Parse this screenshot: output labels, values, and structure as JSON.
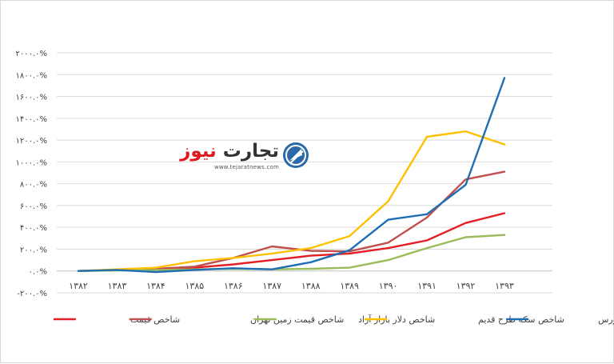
{
  "logo": {
    "name_part1": "تجارت",
    "name_part2": "نیوز",
    "url": "www.tejaratnews.com",
    "colors": {
      "dark": "#333333",
      "accent": "#e0191f",
      "mark": "#2b6aa8"
    }
  },
  "chart_data": {
    "type": "line",
    "categories": [
      "۱۳۸۲",
      "۱۳۸۳",
      "۱۳۸۴",
      "۱۳۸۵",
      "۱۳۸۶",
      "۱۳۸۷",
      "۱۳۸۸",
      "۱۳۸۹",
      "۱۳۹۰",
      "۱۳۹۱",
      "۱۳۹۲",
      "۱۳۹۳"
    ],
    "yticks": [
      -200,
      0,
      200,
      400,
      600,
      800,
      1000,
      1200,
      1400,
      1600,
      1800,
      2000
    ],
    "ytick_labels": [
      "-۲۰۰.۰%",
      "۰.۰%",
      "۲۰۰.۰%",
      "۴۰۰.۰%",
      "۶۰۰.۰%",
      "۸۰۰.۰%",
      "۱۰۰۰.۰%",
      "۱۲۰۰.۰%",
      "۱۴۰۰.۰%",
      "۱۶۰۰.۰%",
      "۱۸۰۰.۰%",
      "۲۰۰۰.۰%"
    ],
    "ylim": [
      -200,
      2000
    ],
    "grid": true,
    "legend_position": "bottom",
    "series": [
      {
        "name": "شاخص قیمت",
        "color": "#e31e24",
        "values": [
          0,
          10,
          20,
          30,
          60,
          100,
          140,
          160,
          210,
          280,
          440,
          530
        ]
      },
      {
        "name": "شاخص قیمت زمین تهران",
        "color": "#c0504d",
        "values": [
          0,
          10,
          20,
          40,
          120,
          225,
          185,
          180,
          260,
          490,
          840,
          910
        ]
      },
      {
        "name": "شاخص دلار بازار آزاد",
        "color": "#9bbb59",
        "values": [
          0,
          5,
          10,
          15,
          20,
          15,
          20,
          30,
          100,
          210,
          310,
          330
        ]
      },
      {
        "name": "شاخص سکه طرح قدیم",
        "color": "#ffc000",
        "values": [
          0,
          15,
          30,
          90,
          120,
          160,
          210,
          320,
          640,
          1230,
          1280,
          1160
        ]
      },
      {
        "name": "شاخص کل بورس",
        "color": "#1f6db5",
        "values": [
          0,
          10,
          -10,
          10,
          25,
          15,
          80,
          190,
          470,
          520,
          790,
          1770
        ]
      }
    ]
  }
}
